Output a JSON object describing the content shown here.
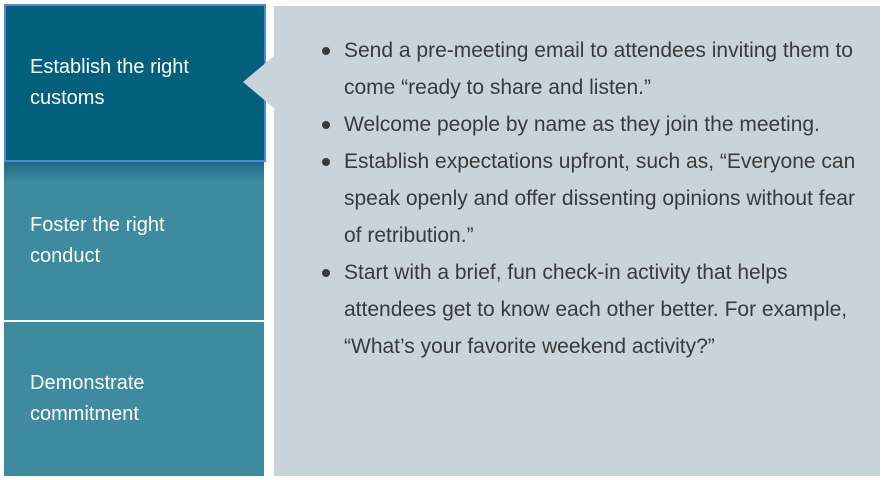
{
  "tabs": [
    {
      "label": "Establish the right customs",
      "active": true
    },
    {
      "label": "Foster the right conduct",
      "active": false
    },
    {
      "label": "Demonstrate commitment",
      "active": false
    }
  ],
  "content": {
    "bullets": [
      "Send a pre-meeting email to attendees inviting them to come “ready to share and listen.”",
      "Welcome people by name as they join the meeting.",
      "Establish expectations upfront, such as, “Everyone can speak openly and offer dissenting opinions without fear of retribution.”",
      "Start with a brief, fun check-in activity that helps attendees get to know each other better. For example, “What’s your favorite weekend activity?”"
    ]
  },
  "colors": {
    "active_tab": "#02607d",
    "inactive_tab": "#3e8a9f",
    "panel_bg": "#c8d3da",
    "text": "#3a3a3a"
  }
}
